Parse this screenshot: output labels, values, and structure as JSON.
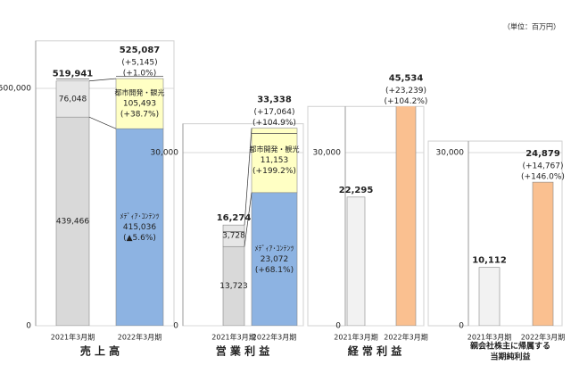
{
  "unit": "（単位：百万円）",
  "chart_data": [
    {
      "type": "bar",
      "stacked": true,
      "title": [
        "売 上 高"
      ],
      "categories": [
        "2021年3月期",
        "2022年3月期"
      ],
      "ylim": [
        0,
        600000
      ],
      "yticks": [
        0,
        {
          "value": 500000,
          "label": "500,000"
        }
      ],
      "grid": true,
      "series": [
        {
          "name": "ﾒﾃﾞｨｱ･ｺﾝﾃﾝﾂ",
          "colors": [
            "#d9d9d9",
            "#8db3e2"
          ],
          "values": [
            439466,
            415036
          ],
          "value_labels": [
            "439,466",
            "415,036"
          ],
          "changes": [
            null,
            "(▲5.6%)"
          ]
        },
        {
          "name": "都市開発・観光",
          "colors": [
            "#e6e6e6",
            "#ffffc4"
          ],
          "values": [
            76048,
            105493
          ],
          "value_labels": [
            "76,048",
            "105,493"
          ],
          "changes": [
            null,
            "(+38.7%)"
          ]
        }
      ],
      "totals": {
        "values": [
          519941,
          525087
        ],
        "value_labels": [
          "519,941",
          "525,087"
        ],
        "changes": [
          null,
          [
            "(+5,145)",
            "(+1.0%)"
          ]
        ]
      }
    },
    {
      "type": "bar",
      "stacked": true,
      "title": [
        "営 業 利 益"
      ],
      "categories": [
        "2021年3月期",
        "2022年3月期"
      ],
      "ylim": [
        0,
        35000
      ],
      "yticks": [
        0,
        {
          "value": 30000,
          "label": "30,000"
        }
      ],
      "grid": true,
      "series": [
        {
          "name": "ﾒﾃﾞｨｱ･ｺﾝﾃﾝﾂ",
          "colors": [
            "#d9d9d9",
            "#8db3e2"
          ],
          "values": [
            13723,
            23072
          ],
          "value_labels": [
            "13,723",
            "23,072"
          ],
          "changes": [
            null,
            "(+68.1%)"
          ]
        },
        {
          "name": "都市開発・観光",
          "colors": [
            "#e6e6e6",
            "#ffffc4"
          ],
          "values": [
            3728,
            11153
          ],
          "value_labels": [
            "3,728",
            "11,153"
          ],
          "changes": [
            null,
            "(+199.2%)"
          ]
        }
      ],
      "totals": {
        "values": [
          16274,
          33338
        ],
        "value_labels": [
          "16,274",
          "33,338"
        ],
        "changes": [
          null,
          [
            "(+17,064)",
            "(+104.9%)"
          ]
        ]
      }
    },
    {
      "type": "bar",
      "stacked": false,
      "title": [
        "経 常 利 益"
      ],
      "categories": [
        "2021年3月期",
        "2022年3月期"
      ],
      "ylim": [
        0,
        38000
      ],
      "yticks": [
        0,
        {
          "value": 30000,
          "label": "30,000"
        }
      ],
      "grid": true,
      "series": [
        {
          "colors": [
            "#f2f2f2",
            "#fac090"
          ],
          "values": [
            22295,
            45534
          ],
          "value_labels": [
            "22,295",
            "45,534"
          ],
          "changes": [
            null,
            [
              "(+23,239)",
              "(+104.2%)"
            ]
          ]
        }
      ]
    },
    {
      "type": "bar",
      "stacked": false,
      "title": [
        "親会社株主に帰属する",
        "当期純利益"
      ],
      "categories": [
        "2021年3月期",
        "2022年3月期"
      ],
      "ylim": [
        0,
        32000
      ],
      "yticks": [
        0,
        {
          "value": 30000,
          "label": "30,000"
        }
      ],
      "grid": true,
      "series": [
        {
          "colors": [
            "#f2f2f2",
            "#fac090"
          ],
          "values": [
            10112,
            24879
          ],
          "value_labels": [
            "10,112",
            "24,879"
          ],
          "changes": [
            null,
            [
              "(+14,767)",
              "(+146.0%)"
            ]
          ]
        }
      ]
    }
  ]
}
